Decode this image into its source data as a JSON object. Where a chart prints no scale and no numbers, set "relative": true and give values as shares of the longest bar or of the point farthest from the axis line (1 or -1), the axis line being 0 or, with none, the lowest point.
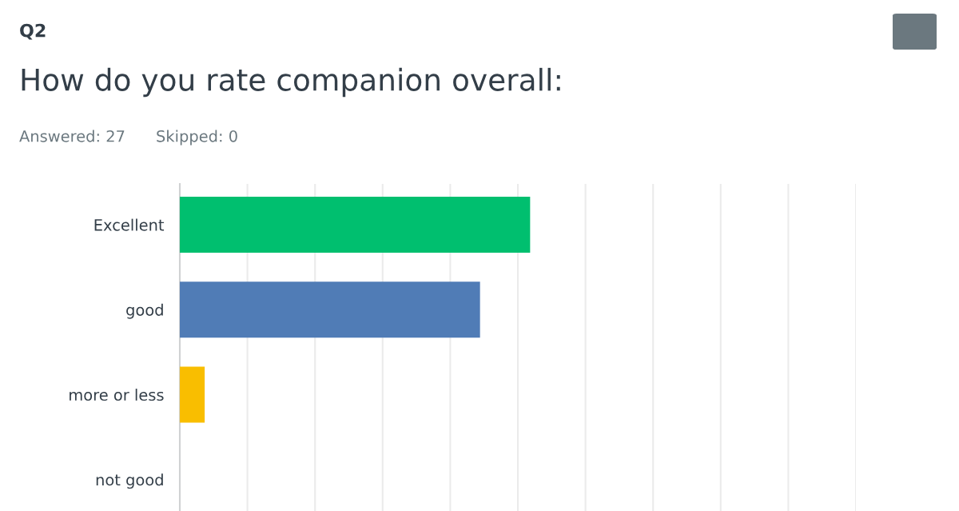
{
  "chart_data": {
    "type": "bar",
    "orientation": "horizontal",
    "relative": true,
    "title": "How do you rate companion overall:",
    "subtitle": "Answered: 27",
    "annotations": [
      "Q2",
      "Skipped: 0"
    ],
    "categories": [
      "Excellent",
      "good",
      "more or less",
      "not good"
    ],
    "values": [
      1,
      0.857,
      0.071,
      0
    ],
    "colors": [
      "#00bf6f",
      "#507cb6",
      "#f9be00",
      "#6bc8cd"
    ],
    "grid": "x"
  }
}
